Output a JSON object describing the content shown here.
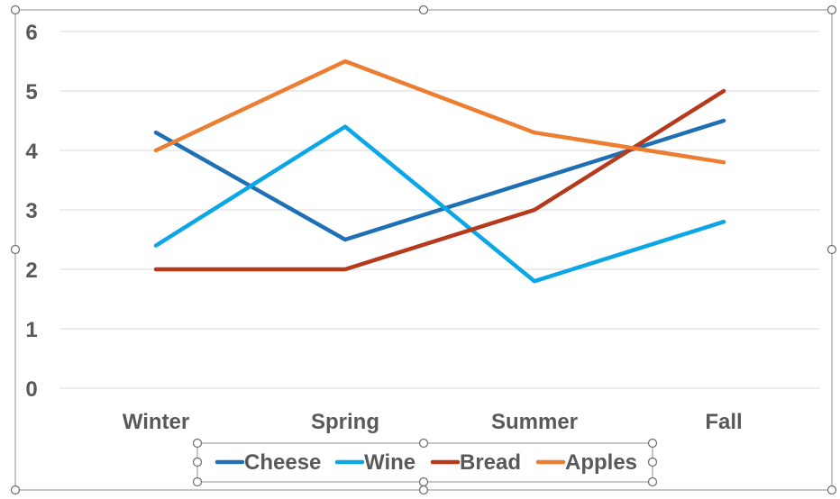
{
  "chart_data": {
    "type": "line",
    "categories": [
      "Winter",
      "Spring",
      "Summer",
      "Fall"
    ],
    "series": [
      {
        "name": "Cheese",
        "color": "#1f6fb4",
        "values": [
          4.3,
          2.5,
          3.5,
          4.5
        ]
      },
      {
        "name": "Wine",
        "color": "#0aa6e6",
        "values": [
          2.4,
          4.4,
          1.8,
          2.8
        ]
      },
      {
        "name": "Bread",
        "color": "#b5391a",
        "values": [
          2.0,
          2.0,
          3.0,
          5.0
        ]
      },
      {
        "name": "Apples",
        "color": "#ed7d31",
        "values": [
          4.0,
          5.5,
          4.3,
          3.8
        ]
      }
    ],
    "yticks": [
      "0",
      "1",
      "2",
      "3",
      "4",
      "5",
      "6"
    ],
    "ylim": [
      0,
      6
    ],
    "title": "",
    "xlabel": "",
    "ylabel": "",
    "grid": true,
    "legend_position": "bottom"
  }
}
